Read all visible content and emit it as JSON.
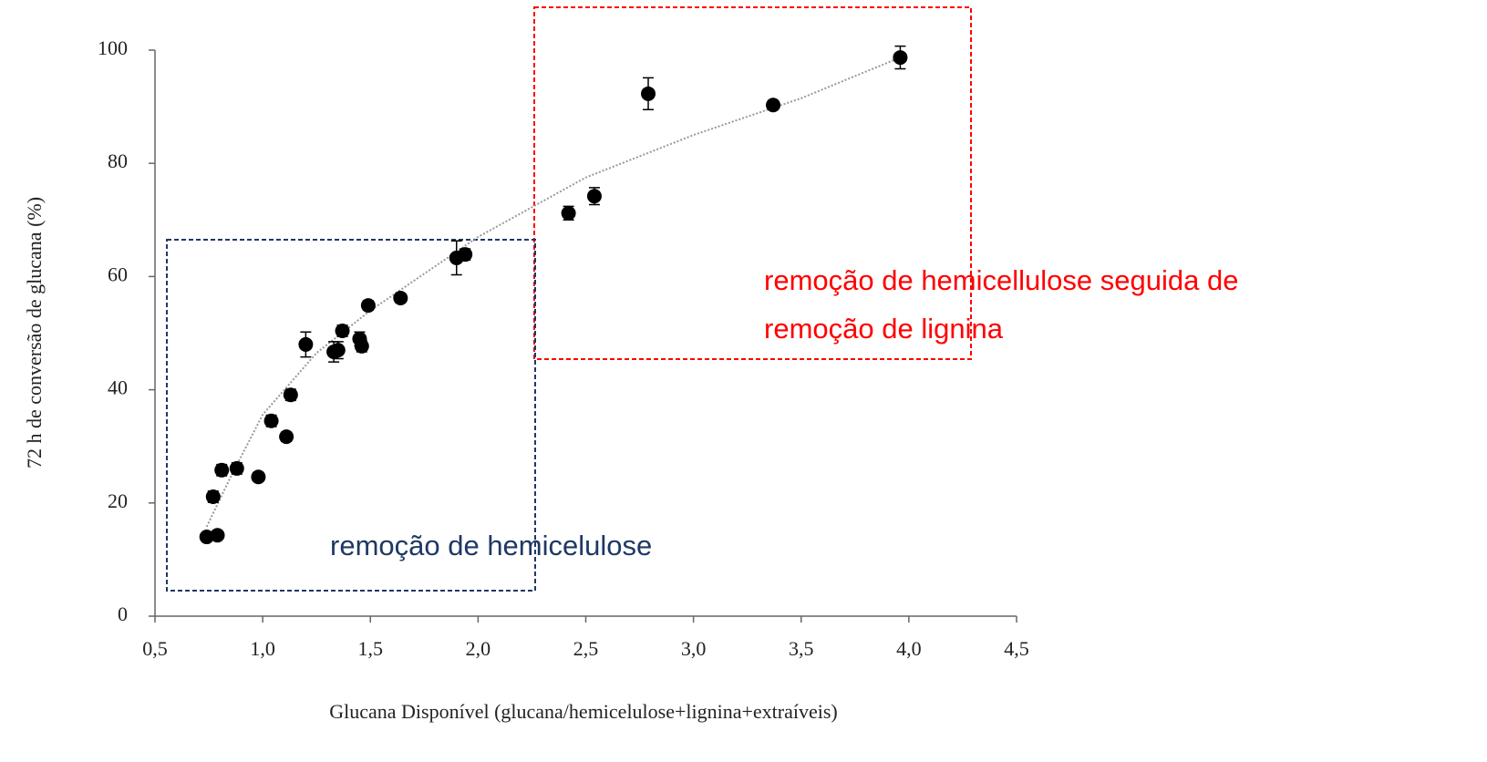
{
  "chart_data": {
    "type": "scatter",
    "x_label": "Glucana Disponível (glucana/hemicelulose+lignina+extraíveis)",
    "y_label": "72 h de conversão de glucana (%)",
    "xlim": [
      0.5,
      4.5
    ],
    "ylim": [
      0,
      100
    ],
    "xticks": [
      {
        "value": 0.5,
        "label": "0,5"
      },
      {
        "value": 1.0,
        "label": "1,0"
      },
      {
        "value": 1.5,
        "label": "1,5"
      },
      {
        "value": 2.0,
        "label": "2,0"
      },
      {
        "value": 2.5,
        "label": "2,5"
      },
      {
        "value": 3.0,
        "label": "3,0"
      },
      {
        "value": 3.5,
        "label": "3,5"
      },
      {
        "value": 4.0,
        "label": "4,0"
      },
      {
        "value": 4.5,
        "label": "4,5"
      }
    ],
    "yticks": [
      0,
      20,
      40,
      60,
      80,
      100
    ],
    "grid": false,
    "series": [
      {
        "color": "#000000",
        "x": [
          0.74,
          0.79,
          0.77,
          0.81,
          0.88,
          0.98,
          1.04,
          1.11,
          1.13,
          1.2,
          1.33,
          1.35,
          1.37,
          1.45,
          1.46,
          1.49,
          1.64,
          1.9,
          1.94,
          2.42,
          2.54,
          2.79,
          3.37,
          3.96
        ],
        "values": [
          14.0,
          14.3,
          21.1,
          25.8,
          26.1,
          24.6,
          34.5,
          31.7,
          39.1,
          48.0,
          46.7,
          47.0,
          50.4,
          49.0,
          47.7,
          54.9,
          56.2,
          63.3,
          63.9,
          71.2,
          74.2,
          92.3,
          90.3,
          98.7
        ],
        "errors": [
          0.5,
          0.5,
          1.0,
          1.0,
          1.0,
          0.8,
          1.0,
          0.8,
          1.0,
          2.2,
          1.8,
          1.5,
          1.0,
          1.2,
          1.0,
          0.8,
          0.8,
          3.0,
          1.0,
          1.2,
          1.5,
          2.8,
          0.8,
          2.0
        ]
      }
    ],
    "trendline": {
      "color": "#999999",
      "x": [
        0.74,
        0.85,
        1.0,
        1.25,
        1.5,
        1.75,
        2.0,
        2.5,
        3.0,
        3.5,
        3.96
      ],
      "values": [
        15.8,
        24.5,
        35.6,
        46.5,
        54.0,
        60.5,
        67.0,
        77.5,
        85.0,
        91.5,
        98.7
      ]
    },
    "annotations": [
      {
        "lines": [
          "remoção de hemicellulose seguida de",
          "remoção de lignina"
        ],
        "color": "#ff0000"
      },
      {
        "lines": [
          "remoção de hemicelulose"
        ],
        "color": "#1f3864"
      }
    ]
  }
}
